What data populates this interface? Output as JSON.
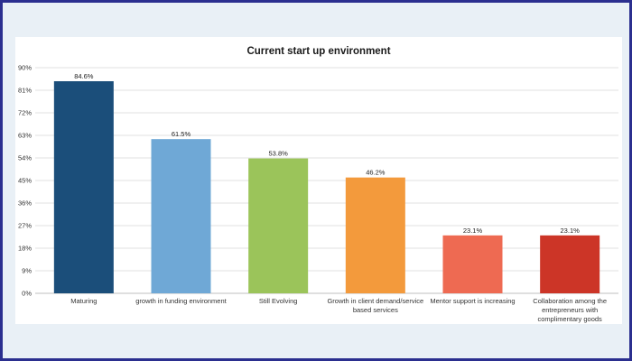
{
  "chart_data": {
    "type": "bar",
    "title": "Current start up environment",
    "xlabel": "",
    "ylabel": "",
    "ylim": [
      0,
      90
    ],
    "y_ticks": [
      "0%",
      "9%",
      "18%",
      "27%",
      "36%",
      "45%",
      "54%",
      "63%",
      "72%",
      "81%",
      "90%"
    ],
    "grid": true,
    "categories": [
      [
        "Maturing"
      ],
      [
        "growth in funding environment"
      ],
      [
        "Still Evolving"
      ],
      [
        "Growth in client demand/service",
        "based services"
      ],
      [
        "Mentor support is increasing"
      ],
      [
        "Collaboration among the",
        "entrepreneurs with",
        "complimentary goods"
      ]
    ],
    "values": [
      84.6,
      61.5,
      53.8,
      46.2,
      23.1,
      23.1
    ],
    "data_labels": [
      "84.6%",
      "61.5%",
      "53.8%",
      "46.2%",
      "23.1%",
      "23.1%"
    ],
    "colors": [
      "#1b4e7a",
      "#6fa8d6",
      "#9bc45a",
      "#f39a3c",
      "#ee6a52",
      "#cc3527"
    ]
  }
}
